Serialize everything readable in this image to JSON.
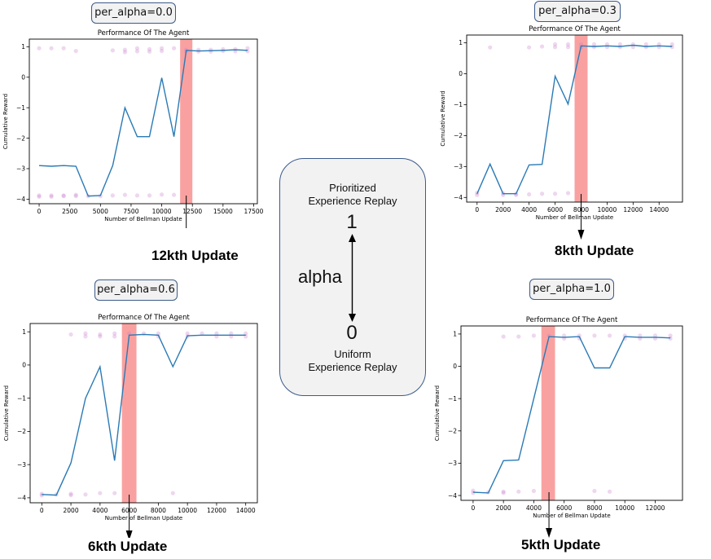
{
  "chart_data": [
    {
      "type": "line",
      "badge": "per_alpha=0.0",
      "title": "Performance Of The Agent",
      "xlabel": "Number of Bellman Update",
      "ylabel": "Cumulative Reward",
      "xlim": [
        -800,
        17800
      ],
      "ylim": [
        -4.15,
        1.25
      ],
      "xticks": [
        0,
        2500,
        5000,
        7500,
        10000,
        12500,
        15000,
        17500
      ],
      "yticks": [
        -4,
        -3,
        -2,
        -1,
        0,
        1
      ],
      "x": [
        0,
        1000,
        2000,
        3000,
        4000,
        5000,
        6000,
        7000,
        8000,
        9000,
        10000,
        11000,
        12000,
        13000,
        14000,
        15000,
        16000,
        17000
      ],
      "values": [
        -2.9,
        -2.92,
        -2.9,
        -2.92,
        -3.9,
        -3.88,
        -2.9,
        -1.0,
        -1.95,
        -1.95,
        -0.02,
        -1.95,
        0.88,
        0.86,
        0.87,
        0.88,
        0.9,
        0.88
      ],
      "highlight": [
        11500,
        12500
      ],
      "scatter": [
        [
          0,
          0.95
        ],
        [
          1000,
          0.95
        ],
        [
          2000,
          0.95
        ],
        [
          3000,
          0.86
        ],
        [
          0,
          -3.88
        ],
        [
          0,
          -3.92
        ],
        [
          1000,
          -3.88
        ],
        [
          1000,
          -3.92
        ],
        [
          2000,
          -3.88
        ],
        [
          2000,
          -3.9
        ],
        [
          3000,
          -3.86
        ],
        [
          3000,
          -3.9
        ],
        [
          4000,
          -3.9
        ],
        [
          5000,
          -3.9
        ],
        [
          6000,
          -3.88
        ],
        [
          7000,
          -3.86
        ],
        [
          8000,
          -3.88
        ],
        [
          9000,
          -3.88
        ],
        [
          10000,
          -3.85
        ],
        [
          11000,
          -3.86
        ],
        [
          6000,
          0.88
        ],
        [
          7000,
          0.9
        ],
        [
          7000,
          0.82
        ],
        [
          8000,
          0.95
        ],
        [
          8000,
          0.85
        ],
        [
          9000,
          0.92
        ],
        [
          9000,
          0.84
        ],
        [
          10000,
          0.95
        ],
        [
          10000,
          0.86
        ],
        [
          11000,
          0.95
        ],
        [
          12000,
          0.9
        ],
        [
          12000,
          0.84
        ],
        [
          13000,
          0.9
        ],
        [
          13000,
          0.84
        ],
        [
          14000,
          0.9
        ],
        [
          14000,
          0.84
        ],
        [
          15000,
          0.92
        ],
        [
          15000,
          0.86
        ],
        [
          16000,
          0.92
        ],
        [
          16000,
          0.85
        ],
        [
          17000,
          0.95
        ],
        [
          17000,
          0.85
        ]
      ],
      "update_label": "12kth Update",
      "arrow_x": 12000
    },
    {
      "type": "line",
      "badge": "per_alpha=0.3",
      "title": "Performance Of The Agent",
      "xlabel": "Number of Bellman Update",
      "ylabel": "Cumulative Reward",
      "xlim": [
        -800,
        15800
      ],
      "ylim": [
        -4.15,
        1.25
      ],
      "xticks": [
        0,
        2000,
        4000,
        6000,
        8000,
        10000,
        12000,
        14000
      ],
      "yticks": [
        -4,
        -3,
        -2,
        -1,
        0,
        1
      ],
      "x": [
        0,
        1000,
        2000,
        3000,
        4000,
        5000,
        6000,
        7000,
        8000,
        9000,
        10000,
        11000,
        12000,
        13000,
        14000,
        15000
      ],
      "values": [
        -3.88,
        -2.92,
        -3.88,
        -3.88,
        -2.95,
        -2.93,
        -0.08,
        -0.98,
        0.9,
        0.88,
        0.9,
        0.88,
        0.92,
        0.88,
        0.9,
        0.88
      ],
      "highlight": [
        7500,
        8500
      ],
      "scatter": [
        [
          0,
          -3.85
        ],
        [
          0,
          -3.92
        ],
        [
          1000,
          0.85
        ],
        [
          2000,
          -3.86
        ],
        [
          2000,
          -3.92
        ],
        [
          3000,
          -3.88
        ],
        [
          3000,
          -3.92
        ],
        [
          4000,
          -3.9
        ],
        [
          5000,
          -3.88
        ],
        [
          6000,
          -3.88
        ],
        [
          7000,
          -3.86
        ],
        [
          4000,
          0.85
        ],
        [
          5000,
          0.88
        ],
        [
          6000,
          0.95
        ],
        [
          6000,
          0.86
        ],
        [
          7000,
          0.95
        ],
        [
          7000,
          0.86
        ],
        [
          8000,
          0.95
        ],
        [
          8000,
          0.85
        ],
        [
          9000,
          0.95
        ],
        [
          9000,
          0.86
        ],
        [
          10000,
          0.95
        ],
        [
          10000,
          0.86
        ],
        [
          11000,
          0.95
        ],
        [
          11000,
          0.86
        ],
        [
          12000,
          0.95
        ],
        [
          12000,
          0.86
        ],
        [
          13000,
          0.95
        ],
        [
          13000,
          0.86
        ],
        [
          14000,
          0.95
        ],
        [
          14000,
          0.86
        ],
        [
          15000,
          0.95
        ],
        [
          15000,
          0.86
        ]
      ],
      "update_label": "8kth Update",
      "arrow_x": 8000
    },
    {
      "type": "line",
      "badge": "per_alpha=0.6",
      "title": "Performance Of The Agent",
      "xlabel": "Number of Bellman Update",
      "ylabel": "Cumulative Reward",
      "xlim": [
        -800,
        14800
      ],
      "ylim": [
        -4.15,
        1.25
      ],
      "xticks": [
        0,
        2000,
        4000,
        6000,
        8000,
        10000,
        12000,
        14000
      ],
      "yticks": [
        -4,
        -3,
        -2,
        -1,
        0,
        1
      ],
      "x": [
        0,
        1000,
        2000,
        3000,
        4000,
        5000,
        6000,
        7000,
        8000,
        9000,
        10000,
        11000,
        12000,
        13000,
        14000
      ],
      "values": [
        -3.9,
        -3.92,
        -2.95,
        -1.0,
        -0.05,
        -2.88,
        0.9,
        0.92,
        0.9,
        -0.05,
        0.88,
        0.9,
        0.9,
        0.9,
        0.9
      ],
      "highlight": [
        5500,
        6500
      ],
      "scatter": [
        [
          0,
          -3.88
        ],
        [
          0,
          -3.93
        ],
        [
          1000,
          -3.9
        ],
        [
          2000,
          -3.88
        ],
        [
          2000,
          -3.92
        ],
        [
          3000,
          -3.9
        ],
        [
          4000,
          -3.86
        ],
        [
          5000,
          -3.86
        ],
        [
          9000,
          -3.86
        ],
        [
          2000,
          0.92
        ],
        [
          3000,
          0.95
        ],
        [
          3000,
          0.86
        ],
        [
          4000,
          0.92
        ],
        [
          4000,
          0.86
        ],
        [
          5000,
          0.95
        ],
        [
          5000,
          0.86
        ],
        [
          6000,
          0.95
        ],
        [
          7000,
          0.95
        ],
        [
          8000,
          0.95
        ],
        [
          8000,
          0.86
        ],
        [
          10000,
          0.95
        ],
        [
          10000,
          0.86
        ],
        [
          11000,
          0.95
        ],
        [
          12000,
          0.95
        ],
        [
          12000,
          0.86
        ],
        [
          13000,
          0.95
        ],
        [
          13000,
          0.86
        ],
        [
          14000,
          0.95
        ],
        [
          14000,
          0.86
        ]
      ],
      "update_label": "6kth Update",
      "arrow_x": 6000
    },
    {
      "type": "line",
      "badge": "per_alpha=1.0",
      "title": "Performance Of The Agent",
      "xlabel": "Number of Bellman Update",
      "ylabel": "Cumulative Reward",
      "xlim": [
        -800,
        13800
      ],
      "ylim": [
        -4.15,
        1.25
      ],
      "xticks": [
        0,
        2000,
        4000,
        6000,
        8000,
        10000,
        12000
      ],
      "yticks": [
        -4,
        -3,
        -2,
        -1,
        0,
        1
      ],
      "x": [
        0,
        1000,
        2000,
        3000,
        4000,
        5000,
        6000,
        7000,
        8000,
        9000,
        10000,
        11000,
        12000,
        13000
      ],
      "values": [
        -3.9,
        -3.92,
        -2.92,
        -2.9,
        -1.0,
        0.92,
        0.9,
        0.92,
        -0.05,
        -0.05,
        0.92,
        0.9,
        0.9,
        0.88
      ],
      "highlight": [
        4500,
        5400
      ],
      "scatter": [
        [
          0,
          -3.85
        ],
        [
          0,
          -3.92
        ],
        [
          1000,
          -3.9
        ],
        [
          2000,
          -3.88
        ],
        [
          2000,
          -3.92
        ],
        [
          3000,
          -3.88
        ],
        [
          4000,
          -3.86
        ],
        [
          8000,
          -3.86
        ],
        [
          9000,
          -3.88
        ],
        [
          2000,
          0.92
        ],
        [
          3000,
          0.92
        ],
        [
          4000,
          0.95
        ],
        [
          5000,
          0.95
        ],
        [
          6000,
          0.95
        ],
        [
          6000,
          0.86
        ],
        [
          7000,
          0.95
        ],
        [
          7000,
          0.86
        ],
        [
          8000,
          0.95
        ],
        [
          9000,
          0.95
        ],
        [
          10000,
          0.95
        ],
        [
          10000,
          0.86
        ],
        [
          11000,
          0.95
        ],
        [
          11000,
          0.86
        ],
        [
          12000,
          0.95
        ],
        [
          12000,
          0.86
        ],
        [
          13000,
          0.95
        ],
        [
          13000,
          0.86
        ]
      ],
      "update_label": "5kth Update",
      "arrow_x": 5000
    }
  ],
  "center": {
    "top_line1": "Prioritized",
    "top_line2": "Experience Replay",
    "top_value": "1",
    "axis_label": "alpha",
    "bottom_value": "0",
    "bottom_line1": "Uniform",
    "bottom_line2": "Experience Replay"
  },
  "colors": {
    "line": "#2a7ab5",
    "scatter": "#c77ccb",
    "highlight": "#f88a8a"
  }
}
